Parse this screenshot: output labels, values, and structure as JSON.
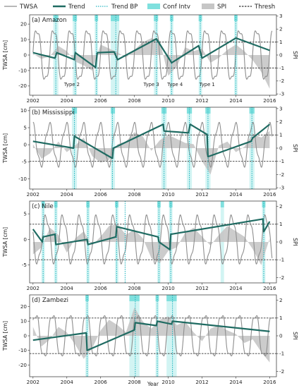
{
  "chart_data": {
    "type": "line",
    "legend": {
      "placement": "top",
      "items": [
        {
          "label": "TWSA",
          "color": "#8e8e8e",
          "kind": "line"
        },
        {
          "label": "Trend",
          "color": "#1f6b62",
          "kind": "thickline"
        },
        {
          "label": "Trend BP",
          "color": "#2ab8c2",
          "kind": "dotted"
        },
        {
          "label": "Conf Intv",
          "color": "#7fe0de",
          "kind": "box"
        },
        {
          "label": "SPI",
          "color": "#c6c6c6",
          "kind": "box"
        },
        {
          "label": "Thresh",
          "color": "#333333",
          "kind": "dashed"
        }
      ]
    },
    "xlabel": "Year",
    "xlim": [
      2001.8,
      2016.4
    ],
    "xticks": [
      2002,
      2004,
      2006,
      2008,
      2010,
      2012,
      2014,
      2016
    ],
    "colors": {
      "twsa": "#8e8e8e",
      "trend": "#1f6b62",
      "bp": "#2ab8c2",
      "conf": "#7fe0de",
      "spi": "#c6c6c6",
      "thresh": "#333333"
    },
    "panels": [
      {
        "title": "(a) Amazon",
        "ylabel_left": "TWSA [cm]",
        "ylabel_right": "SPI",
        "ylim": [
          -26,
          26
        ],
        "yticks": [
          -20,
          -10,
          0,
          10,
          20
        ],
        "spi_ylim": [
          -3.1,
          3.1
        ],
        "spi_ticks": [
          -3,
          -2,
          -1,
          0,
          1,
          2,
          3
        ],
        "thresh": [
          -1,
          1
        ],
        "twsa_amp": 17,
        "twsa_phase": 0.1,
        "trend": [
          [
            2002.0,
            1.5
          ],
          [
            2003.3,
            -2
          ],
          [
            2003.4,
            1.5
          ],
          [
            2004.45,
            -3
          ],
          [
            2004.5,
            1.5
          ],
          [
            2005.7,
            -8
          ],
          [
            2005.8,
            1.5
          ],
          [
            2006.8,
            2
          ],
          [
            2007.0,
            -3
          ],
          [
            2009.3,
            10.5
          ],
          [
            2010.2,
            -5
          ],
          [
            2011.8,
            6
          ],
          [
            2012.0,
            -2
          ],
          [
            2014.0,
            11
          ],
          [
            2016.0,
            3
          ]
        ],
        "breakpoints": [
          2003.35,
          2004.5,
          2005.75,
          2006.9,
          2009.3,
          2010.2,
          2011.9,
          2014.0
        ],
        "conf": [
          [
            2003.2,
            2003.5
          ],
          [
            2004.35,
            2004.6
          ],
          [
            2005.65,
            2005.85
          ],
          [
            2006.6,
            2007.1
          ],
          [
            2009.15,
            2009.4
          ],
          [
            2010.1,
            2010.3
          ],
          [
            2011.8,
            2012.0
          ],
          [
            2013.9,
            2014.1
          ]
        ],
        "spi_points": [
          [
            2002.0,
            0.1
          ],
          [
            2002.5,
            -0.3
          ],
          [
            2003.0,
            -0.1
          ],
          [
            2003.5,
            0.7
          ],
          [
            2004.0,
            0.3
          ],
          [
            2004.5,
            -0.5
          ],
          [
            2005.0,
            -0.8
          ],
          [
            2005.5,
            -1.2
          ],
          [
            2006.0,
            0.8
          ],
          [
            2006.5,
            0.5
          ],
          [
            2007.0,
            0.2
          ],
          [
            2007.5,
            -0.2
          ],
          [
            2008.0,
            0.4
          ],
          [
            2008.5,
            1.0
          ],
          [
            2009.0,
            1.3
          ],
          [
            2009.5,
            1.1
          ],
          [
            2010.0,
            -1.6
          ],
          [
            2010.5,
            -0.9
          ],
          [
            2011.0,
            0.6
          ],
          [
            2011.5,
            0.3
          ],
          [
            2012.0,
            0.5
          ],
          [
            2012.5,
            -0.6
          ],
          [
            2013.0,
            -0.2
          ],
          [
            2013.5,
            0.4
          ],
          [
            2014.0,
            0.8
          ],
          [
            2014.5,
            0.3
          ],
          [
            2015.0,
            -0.4
          ],
          [
            2015.5,
            -1.3
          ],
          [
            2016.0,
            -2.6
          ]
        ],
        "annotations": [
          {
            "text": "Type 2",
            "x": 2004.3,
            "y": -20
          },
          {
            "text": "Type 3",
            "x": 2009.0,
            "y": -20
          },
          {
            "text": "Type 4",
            "x": 2010.4,
            "y": -20
          },
          {
            "text": "Type 1",
            "x": 2012.3,
            "y": -20
          }
        ]
      },
      {
        "title": "(b) Mississippi",
        "ylabel_left": "TWSA [cm]",
        "ylabel_right": "SPI",
        "ylim": [
          -13,
          11
        ],
        "yticks": [
          -10,
          -5,
          0,
          5,
          10
        ],
        "spi_ylim": [
          -3.1,
          3.1
        ],
        "spi_ticks": [
          -3,
          -2,
          -1,
          0,
          1,
          2,
          3
        ],
        "thresh": [
          -1,
          1
        ],
        "twsa_amp": 6,
        "twsa_phase": 1.8,
        "trend": [
          [
            2002.0,
            1
          ],
          [
            2004.4,
            -1
          ],
          [
            2004.45,
            2.5
          ],
          [
            2006.7,
            -4
          ],
          [
            2006.75,
            -1
          ],
          [
            2009.7,
            6
          ],
          [
            2009.75,
            4
          ],
          [
            2011.2,
            3.5
          ],
          [
            2011.3,
            6
          ],
          [
            2012.3,
            3
          ],
          [
            2012.35,
            -3.5
          ],
          [
            2014.9,
            1
          ],
          [
            2015.0,
            2
          ],
          [
            2016.0,
            6
          ]
        ],
        "breakpoints": [
          2004.45,
          2006.7,
          2009.75,
          2011.25,
          2012.35,
          2014.95
        ],
        "conf": [
          [
            2004.3,
            2004.6
          ],
          [
            2006.6,
            2006.85
          ],
          [
            2009.6,
            2009.9
          ],
          [
            2011.1,
            2011.4
          ],
          [
            2012.2,
            2012.5
          ],
          [
            2014.8,
            2015.1
          ]
        ],
        "spi_points": [
          [
            2002.0,
            0.3
          ],
          [
            2002.5,
            -0.8
          ],
          [
            2003.0,
            -0.4
          ],
          [
            2003.5,
            0.5
          ],
          [
            2004.0,
            -0.3
          ],
          [
            2004.5,
            0.2
          ],
          [
            2005.0,
            0.8
          ],
          [
            2005.5,
            -0.6
          ],
          [
            2006.0,
            -1.1
          ],
          [
            2006.5,
            -0.9
          ],
          [
            2007.0,
            0.3
          ],
          [
            2007.5,
            0.5
          ],
          [
            2008.0,
            1.2
          ],
          [
            2008.5,
            0.9
          ],
          [
            2009.0,
            -0.2
          ],
          [
            2009.5,
            0.6
          ],
          [
            2010.0,
            1.0
          ],
          [
            2010.5,
            0.7
          ],
          [
            2011.0,
            0.4
          ],
          [
            2011.5,
            0.3
          ],
          [
            2012.0,
            -1.0
          ],
          [
            2012.5,
            -2.0
          ],
          [
            2013.0,
            0.2
          ],
          [
            2013.5,
            0.5
          ],
          [
            2014.0,
            -0.3
          ],
          [
            2014.5,
            0.1
          ],
          [
            2015.0,
            1.1
          ],
          [
            2015.5,
            0.8
          ],
          [
            2016.0,
            1.3
          ]
        ],
        "annotations": []
      },
      {
        "title": "(c) Nile",
        "ylabel_left": "TWSA [cm]",
        "ylabel_right": "SPI",
        "ylim": [
          -8.5,
          7.5
        ],
        "yticks": [
          -5,
          0,
          5
        ],
        "spi_ylim": [
          -2.3,
          2.3
        ],
        "spi_ticks": [
          -2,
          -1,
          0,
          1,
          2
        ],
        "thresh": [
          -1,
          1
        ],
        "twsa_amp": 4.5,
        "twsa_phase": 3.0,
        "trend": [
          [
            2002.0,
            2
          ],
          [
            2002.55,
            -0.5
          ],
          [
            2002.6,
            0.5
          ],
          [
            2003.3,
            1
          ],
          [
            2003.35,
            -1
          ],
          [
            2005.2,
            0
          ],
          [
            2005.25,
            -1
          ],
          [
            2006.9,
            0.5
          ],
          [
            2006.95,
            2.5
          ],
          [
            2009.4,
            0.5
          ],
          [
            2009.45,
            -0.5
          ],
          [
            2010.1,
            -2
          ],
          [
            2010.15,
            1
          ],
          [
            2015.6,
            4
          ],
          [
            2015.65,
            1.5
          ],
          [
            2016.0,
            3.5
          ]
        ],
        "breakpoints": [
          2002.6,
          2003.35,
          2005.25,
          2006.95,
          2007.45,
          2009.45,
          2010.15,
          2015.65
        ],
        "conf": [
          [
            2002.5,
            2002.7
          ],
          [
            2003.25,
            2003.45
          ],
          [
            2005.15,
            2005.35
          ],
          [
            2006.85,
            2007.05
          ],
          [
            2009.35,
            2009.55
          ],
          [
            2010.05,
            2010.25
          ],
          [
            2013.1,
            2013.3
          ],
          [
            2015.55,
            2015.75
          ]
        ],
        "spi_points": [
          [
            2002.0,
            -0.7
          ],
          [
            2002.5,
            -0.3
          ],
          [
            2003.0,
            0.8
          ],
          [
            2003.5,
            0.4
          ],
          [
            2004.0,
            -0.6
          ],
          [
            2004.5,
            0.2
          ],
          [
            2005.0,
            0.6
          ],
          [
            2005.5,
            -0.2
          ],
          [
            2006.0,
            0.3
          ],
          [
            2006.5,
            0.9
          ],
          [
            2007.0,
            1.0
          ],
          [
            2007.5,
            0.4
          ],
          [
            2008.0,
            0.7
          ],
          [
            2008.5,
            0.2
          ],
          [
            2009.0,
            -0.9
          ],
          [
            2009.5,
            -1.2
          ],
          [
            2010.0,
            -0.5
          ],
          [
            2010.5,
            -0.3
          ],
          [
            2011.0,
            0.5
          ],
          [
            2011.5,
            0.8
          ],
          [
            2012.0,
            0.3
          ],
          [
            2012.5,
            -0.2
          ],
          [
            2013.0,
            0.4
          ],
          [
            2013.5,
            0.9
          ],
          [
            2014.0,
            0.6
          ],
          [
            2014.5,
            0.3
          ],
          [
            2015.0,
            -0.4
          ],
          [
            2015.5,
            -1.3
          ],
          [
            2016.0,
            0.2
          ]
        ],
        "annotations": []
      },
      {
        "title": "(d) Zambezi",
        "ylabel_left": "TWSA [cm]",
        "ylabel_right": "SPI",
        "ylim": [
          -28,
          28
        ],
        "yticks": [
          -20,
          -10,
          0,
          10,
          20
        ],
        "spi_ylim": [
          -2.3,
          2.3
        ],
        "spi_ticks": [
          -2,
          -1,
          0,
          1,
          2
        ],
        "thresh": [
          -1,
          1
        ],
        "twsa_amp": 15,
        "twsa_phase": 0.6,
        "trend": [
          [
            2002.0,
            -3
          ],
          [
            2005.15,
            2
          ],
          [
            2005.2,
            -10
          ],
          [
            2008.0,
            4
          ],
          [
            2008.05,
            9
          ],
          [
            2009.3,
            7
          ],
          [
            2009.35,
            10
          ],
          [
            2010.2,
            8
          ],
          [
            2010.25,
            10
          ],
          [
            2016.0,
            3
          ]
        ],
        "breakpoints": [
          2005.2,
          2008.05,
          2009.35,
          2010.25
        ],
        "conf": [
          [
            2005.1,
            2005.3
          ],
          [
            2007.7,
            2008.3
          ],
          [
            2009.25,
            2009.45
          ],
          [
            2009.9,
            2010.5
          ]
        ],
        "spi_points": [
          [
            2002.0,
            0.5
          ],
          [
            2002.5,
            -0.6
          ],
          [
            2003.0,
            -0.2
          ],
          [
            2003.5,
            0.5
          ],
          [
            2004.0,
            0.2
          ],
          [
            2004.5,
            -0.5
          ],
          [
            2005.0,
            -1.3
          ],
          [
            2005.5,
            -0.7
          ],
          [
            2006.0,
            0.3
          ],
          [
            2006.5,
            0.9
          ],
          [
            2007.0,
            0.6
          ],
          [
            2007.5,
            0.2
          ],
          [
            2008.0,
            1.6
          ],
          [
            2008.5,
            0.8
          ],
          [
            2009.0,
            0.4
          ],
          [
            2009.5,
            0.9
          ],
          [
            2010.0,
            1.1
          ],
          [
            2010.5,
            0.6
          ],
          [
            2011.0,
            0.8
          ],
          [
            2011.5,
            0.2
          ],
          [
            2012.0,
            -0.3
          ],
          [
            2012.5,
            0.4
          ],
          [
            2013.0,
            0.6
          ],
          [
            2013.5,
            0.3
          ],
          [
            2014.0,
            0.1
          ],
          [
            2014.5,
            -0.4
          ],
          [
            2015.0,
            -0.2
          ],
          [
            2015.5,
            -0.9
          ],
          [
            2016.0,
            -1.5
          ]
        ],
        "annotations": []
      }
    ]
  }
}
